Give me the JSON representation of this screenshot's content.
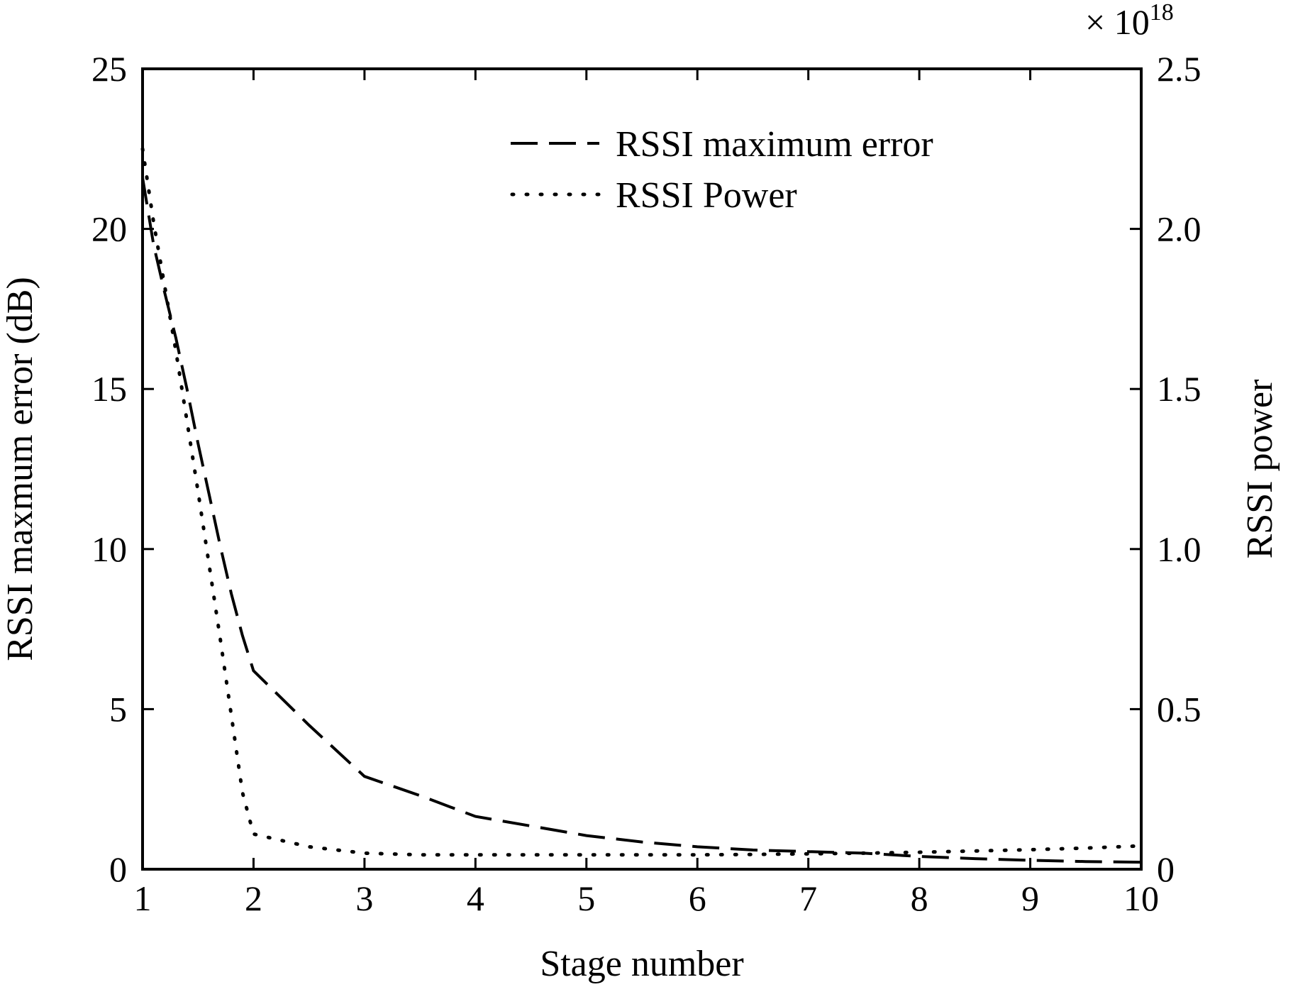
{
  "chart_data": {
    "type": "line",
    "xlabel": "Stage number",
    "ylabel_left": "RSSI maxmum error (dB)",
    "ylabel_right": "RSSI power",
    "right_axis_multiplier": {
      "base": "× 10",
      "exponent": "18"
    },
    "xlim": [
      1,
      10
    ],
    "ylim_left": [
      0,
      25
    ],
    "ylim_right": [
      0,
      2.5
    ],
    "x_ticks": [
      "1",
      "2",
      "3",
      "4",
      "5",
      "6",
      "7",
      "8",
      "9",
      "10"
    ],
    "y_ticks_left": [
      "0",
      "5",
      "10",
      "15",
      "20",
      "25"
    ],
    "y_ticks_right": [
      "0",
      "0.5",
      "1.0",
      "1.5",
      "2.0",
      "2.5"
    ],
    "grid": false,
    "legend_position": "top-right",
    "series": [
      {
        "name": "RSSI maximum error",
        "axis": "left",
        "style": "dashed",
        "x": [
          1,
          1.1,
          1.2,
          1.3,
          1.4,
          1.5,
          1.6,
          1.7,
          1.8,
          1.9,
          2,
          2.5,
          3,
          3.5,
          4,
          4.5,
          5,
          5.5,
          6,
          6.5,
          7,
          7.5,
          8,
          8.5,
          9,
          9.5,
          10
        ],
        "y": [
          21.6,
          19.5,
          18.0,
          16.6,
          15.0,
          13.3,
          11.7,
          10.1,
          8.6,
          7.3,
          6.2,
          4.5,
          2.9,
          2.3,
          1.65,
          1.35,
          1.05,
          0.85,
          0.7,
          0.6,
          0.55,
          0.5,
          0.4,
          0.33,
          0.28,
          0.24,
          0.22
        ]
      },
      {
        "name": "RSSI Power",
        "axis": "right",
        "style": "dotted",
        "x": [
          1,
          1.1,
          1.2,
          1.3,
          1.4,
          1.5,
          1.6,
          1.7,
          1.8,
          1.9,
          2,
          2.5,
          3,
          3.5,
          4,
          4.5,
          5,
          5.5,
          6,
          6.5,
          7,
          7.5,
          8,
          8.5,
          9,
          9.5,
          10
        ],
        "y": [
          2.25,
          2.02,
          1.82,
          1.62,
          1.4,
          1.18,
          0.95,
          0.72,
          0.48,
          0.24,
          0.11,
          0.07,
          0.05,
          0.045,
          0.045,
          0.045,
          0.045,
          0.045,
          0.045,
          0.046,
          0.048,
          0.05,
          0.053,
          0.057,
          0.061,
          0.066,
          0.073
        ]
      }
    ]
  }
}
